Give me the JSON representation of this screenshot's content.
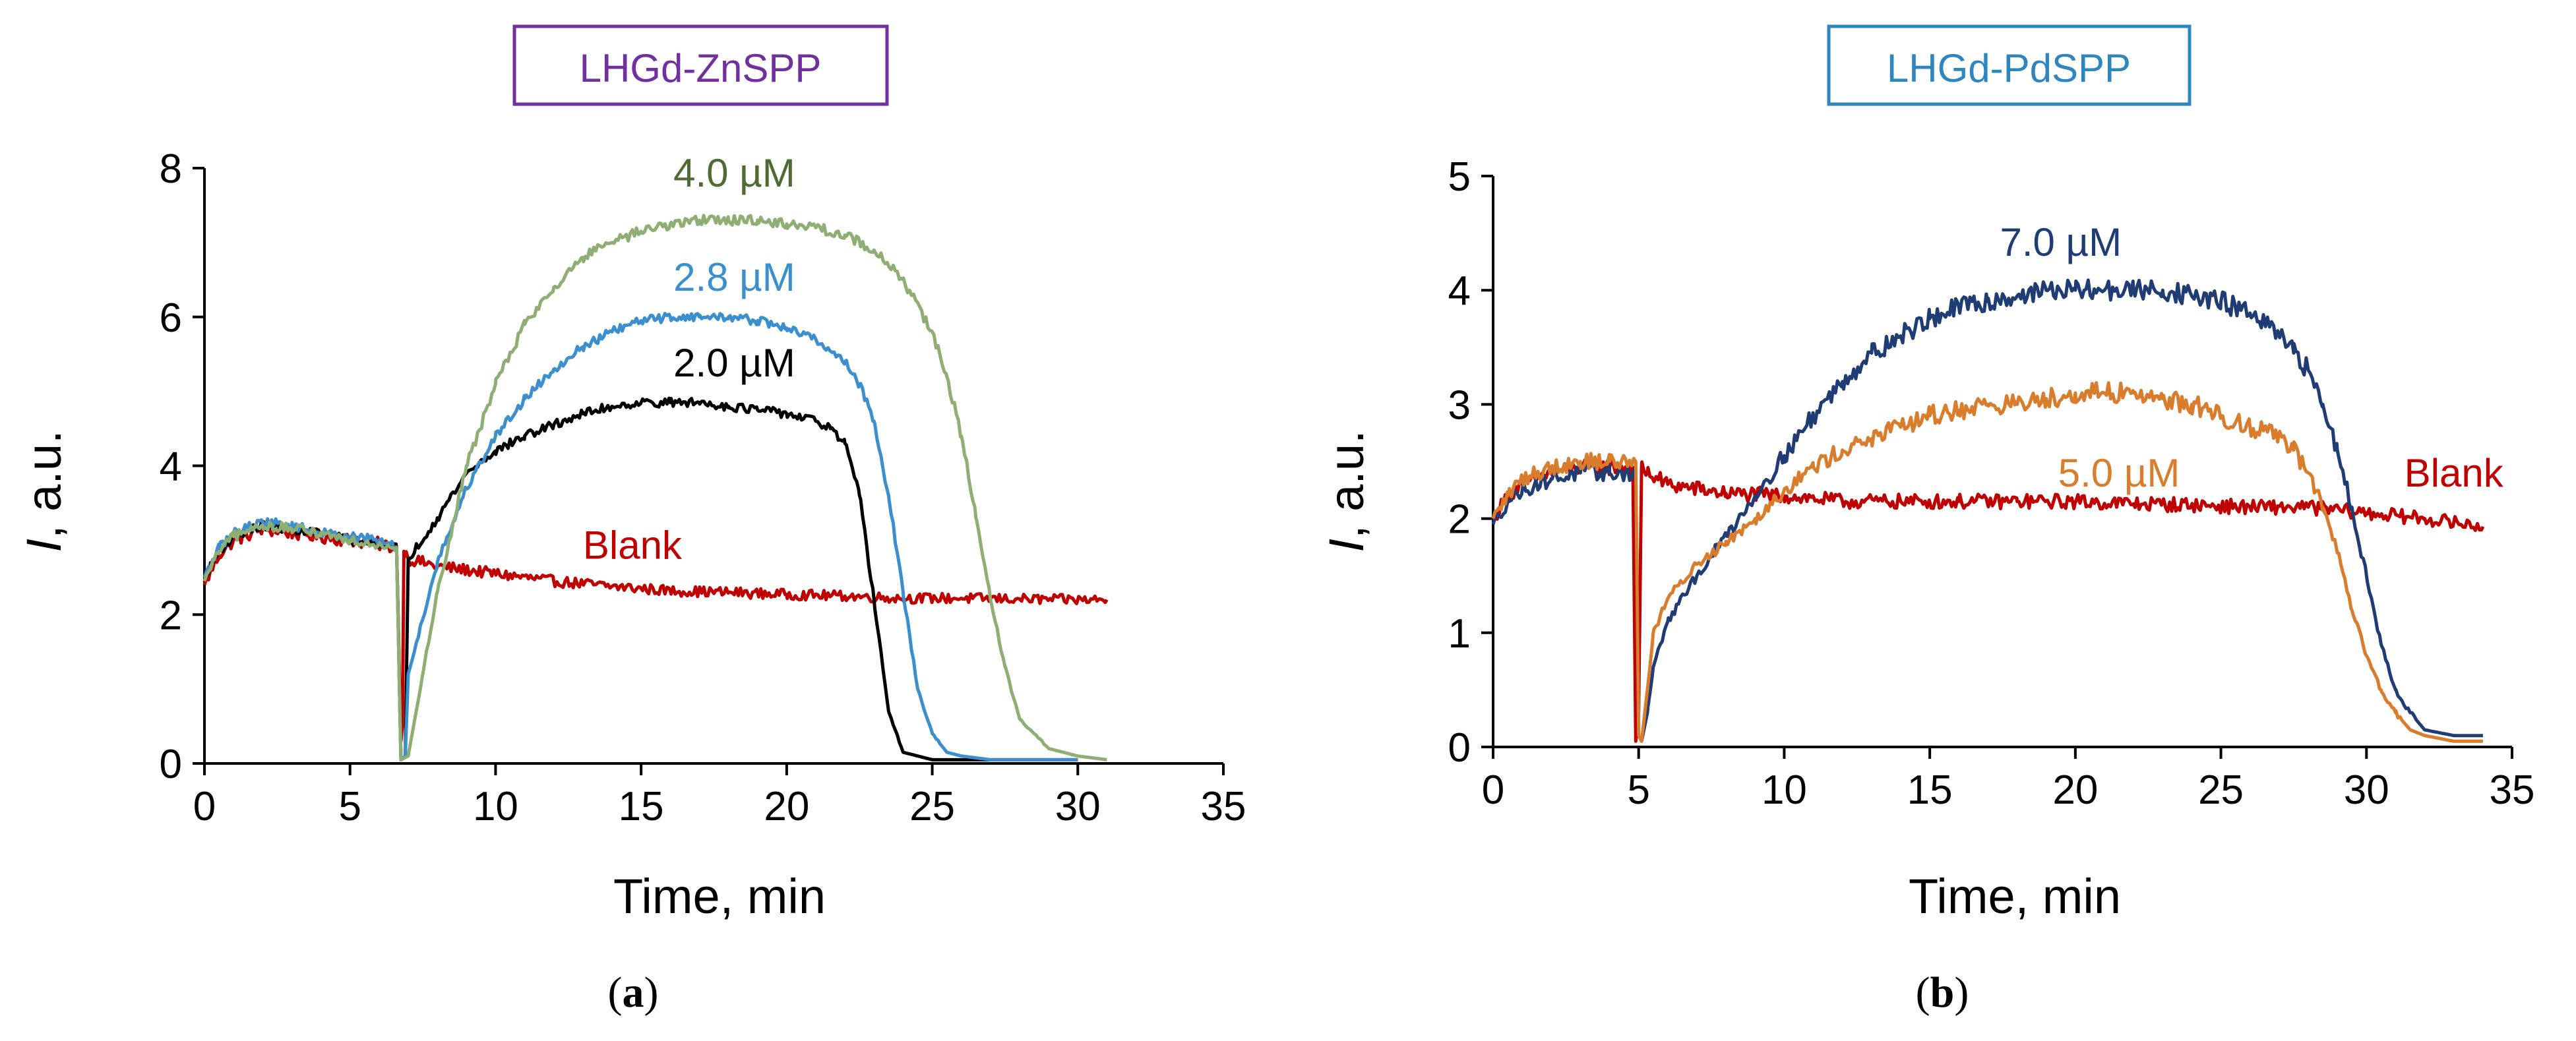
{
  "chart_data": [
    {
      "type": "line",
      "panel": "a",
      "panel_label_open": "(",
      "panel_label_letter": "a",
      "panel_label_close": ")",
      "title": "LHGd-ZnSPP",
      "title_color": "#7030a0",
      "xlabel": "Time, min",
      "ylabel_italic": "I",
      "ylabel_rest": ", a.u.",
      "xlim": [
        0,
        35
      ],
      "ylim": [
        0,
        8
      ],
      "xticks": [
        0,
        5,
        10,
        15,
        20,
        25,
        30,
        35
      ],
      "yticks": [
        0,
        2,
        4,
        6,
        8
      ],
      "series": [
        {
          "name": "Blank",
          "label": "Blank",
          "color": "#c00000",
          "noise": 0.09,
          "x": [
            0,
            0.5,
            1,
            2,
            3,
            4,
            5,
            6,
            6.6,
            6.75,
            6.8,
            6.85,
            7,
            8,
            10,
            12,
            14,
            16,
            18,
            20,
            22,
            24,
            26,
            28,
            30,
            31
          ],
          "y": [
            2.4,
            2.8,
            3.0,
            3.15,
            3.1,
            3.05,
            3.0,
            2.95,
            2.9,
            0.3,
            0.5,
            2.85,
            2.75,
            2.65,
            2.55,
            2.45,
            2.38,
            2.32,
            2.3,
            2.27,
            2.25,
            2.22,
            2.22,
            2.21,
            2.2,
            2.2
          ]
        },
        {
          "name": "2.0 µM",
          "label": "2.0 µM",
          "color": "#000000",
          "noise": 0.06,
          "x": [
            0,
            0.5,
            1,
            2,
            3,
            4,
            5,
            6,
            6.6,
            6.75,
            6.9,
            7,
            8,
            9,
            10,
            11,
            12,
            13,
            14,
            15,
            16,
            17,
            18,
            19,
            20,
            21,
            21.5,
            22,
            22.5,
            23,
            23.5,
            24,
            25,
            26,
            28,
            30
          ],
          "y": [
            2.5,
            2.85,
            3.05,
            3.2,
            3.15,
            3.1,
            3.0,
            2.95,
            2.9,
            0.05,
            0.1,
            2.75,
            3.3,
            3.9,
            4.2,
            4.4,
            4.55,
            4.7,
            4.8,
            4.85,
            4.85,
            4.85,
            4.8,
            4.75,
            4.7,
            4.6,
            4.5,
            4.3,
            3.6,
            2.2,
            0.7,
            0.15,
            0.05,
            0.05,
            0.05,
            0.05
          ]
        },
        {
          "name": "2.8 µM",
          "label": "2.8 µM",
          "color": "#3b8fcf",
          "noise": 0.06,
          "x": [
            0,
            0.5,
            1,
            2,
            3,
            4,
            5,
            6,
            6.6,
            6.75,
            6.9,
            7,
            8,
            9,
            10,
            11,
            12,
            13,
            14,
            15,
            16,
            17,
            18,
            19,
            20,
            21,
            22,
            22.5,
            23,
            23.5,
            24,
            24.5,
            25,
            25.5,
            26,
            27,
            28,
            30
          ],
          "y": [
            2.5,
            2.9,
            3.1,
            3.25,
            3.2,
            3.1,
            3.05,
            3.0,
            2.9,
            0.05,
            0.1,
            1.2,
            2.7,
            3.7,
            4.4,
            4.9,
            5.3,
            5.6,
            5.8,
            5.95,
            6.0,
            6.0,
            6.0,
            5.95,
            5.85,
            5.7,
            5.4,
            5.1,
            4.6,
            3.6,
            2.3,
            1.0,
            0.4,
            0.15,
            0.1,
            0.05,
            0.05,
            0.05
          ]
        },
        {
          "name": "4.0 µM",
          "label": "4.0 µM",
          "color": "#8fae74",
          "label_color": "#4d6b32",
          "noise": 0.07,
          "x": [
            0,
            0.5,
            1,
            2,
            3,
            4,
            5,
            6,
            6.6,
            6.75,
            7,
            7.5,
            8,
            9,
            10,
            11,
            12,
            13,
            14,
            15,
            16,
            17,
            18,
            19,
            20,
            21,
            22,
            23,
            24,
            25,
            25.5,
            26,
            26.5,
            27,
            27.5,
            28,
            29,
            30,
            31
          ],
          "y": [
            2.45,
            2.85,
            3.05,
            3.2,
            3.15,
            3.1,
            3.0,
            2.95,
            2.9,
            0.05,
            0.1,
            1.2,
            2.3,
            4.0,
            5.1,
            5.9,
            6.4,
            6.8,
            7.0,
            7.15,
            7.25,
            7.3,
            7.3,
            7.3,
            7.25,
            7.2,
            7.1,
            6.9,
            6.5,
            5.8,
            5.2,
            4.4,
            3.3,
            2.2,
            1.3,
            0.6,
            0.2,
            0.1,
            0.05
          ]
        }
      ],
      "annotations": [
        {
          "text": "4.0 µM",
          "x": 18.2,
          "y": 7.75,
          "color": "#4d6b32"
        },
        {
          "text": "2.8 µM",
          "x": 18.2,
          "y": 6.35,
          "color": "#3b8fcf"
        },
        {
          "text": "2.0 µM",
          "x": 18.2,
          "y": 5.2,
          "color": "#000000"
        },
        {
          "text": "Blank",
          "x": 14.7,
          "y": 2.75,
          "color": "#c00000"
        }
      ]
    },
    {
      "type": "line",
      "panel": "b",
      "panel_label_open": "(",
      "panel_label_letter": "b",
      "panel_label_close": ")",
      "title": "LHGd-PdSPP",
      "title_color": "#2e86c1",
      "xlabel": "Time, min",
      "ylabel_italic": "I",
      "ylabel_rest": ", a.u.",
      "xlim": [
        0,
        35
      ],
      "ylim": [
        0,
        5
      ],
      "xticks": [
        0,
        5,
        10,
        15,
        20,
        25,
        30,
        35
      ],
      "yticks": [
        0,
        1,
        2,
        3,
        4,
        5
      ],
      "series": [
        {
          "name": "Blank",
          "label": "Blank",
          "color": "#c00000",
          "noise": 0.09,
          "x": [
            0,
            0.5,
            1,
            2,
            3,
            4,
            4.8,
            4.9,
            5.0,
            5.1,
            5.3,
            6,
            8,
            10,
            12,
            14,
            16,
            18,
            20,
            22,
            24,
            26,
            28,
            30,
            32,
            34
          ],
          "y": [
            2.0,
            2.2,
            2.3,
            2.4,
            2.45,
            2.45,
            2.45,
            0.05,
            0.3,
            2.45,
            2.4,
            2.3,
            2.22,
            2.2,
            2.15,
            2.15,
            2.15,
            2.15,
            2.15,
            2.13,
            2.12,
            2.1,
            2.1,
            2.05,
            2.0,
            1.93
          ]
        },
        {
          "name": "7.0 µM",
          "label": "7.0 µM",
          "color": "#1f3c74",
          "noise": 0.09,
          "x": [
            0,
            0.5,
            1,
            2,
            3,
            4,
            4.9,
            5.0,
            5.1,
            5.3,
            5.5,
            6,
            7,
            8,
            9,
            10,
            11,
            12,
            13,
            14,
            15,
            16,
            17,
            18,
            19,
            20,
            21,
            22,
            23,
            24,
            25,
            26,
            27,
            27.5,
            28,
            28.5,
            29,
            29.5,
            30,
            30.5,
            31,
            31.5,
            32,
            33,
            34
          ],
          "y": [
            1.95,
            2.15,
            2.25,
            2.35,
            2.4,
            2.4,
            2.4,
            0.1,
            0.05,
            0.3,
            0.7,
            1.1,
            1.5,
            1.85,
            2.2,
            2.55,
            2.9,
            3.2,
            3.45,
            3.6,
            3.75,
            3.85,
            3.9,
            3.95,
            4.0,
            4.0,
            4.0,
            4.0,
            4.0,
            3.95,
            3.9,
            3.8,
            3.6,
            3.45,
            3.3,
            3.0,
            2.6,
            2.1,
            1.5,
            0.9,
            0.5,
            0.3,
            0.15,
            0.1,
            0.1
          ]
        },
        {
          "name": "5.0 µM",
          "label": "5.0 µM",
          "color": "#d97c2b",
          "label_color": "#d97c2b",
          "noise": 0.09,
          "x": [
            0,
            0.5,
            1,
            2,
            3,
            4,
            4.9,
            5.0,
            5.1,
            5.3,
            5.5,
            6,
            7,
            8,
            9,
            10,
            11,
            12,
            13,
            14,
            15,
            16,
            17,
            18,
            19,
            20,
            21,
            22,
            23,
            24,
            25,
            26,
            27,
            27.5,
            28,
            28.5,
            29,
            29.5,
            30,
            30.5,
            31,
            31.5,
            32,
            33,
            34
          ],
          "y": [
            2.0,
            2.2,
            2.35,
            2.45,
            2.5,
            2.5,
            2.5,
            0.1,
            0.05,
            0.5,
            1.0,
            1.3,
            1.6,
            1.8,
            2.0,
            2.25,
            2.45,
            2.6,
            2.7,
            2.8,
            2.9,
            2.95,
            3.0,
            3.0,
            3.05,
            3.1,
            3.1,
            3.1,
            3.05,
            3.0,
            2.9,
            2.8,
            2.75,
            2.6,
            2.4,
            2.1,
            1.7,
            1.2,
            0.8,
            0.5,
            0.3,
            0.15,
            0.1,
            0.05,
            0.05
          ]
        }
      ],
      "annotations": [
        {
          "text": "7.0 µM",
          "x": 19.5,
          "y": 4.3,
          "color": "#1f3c74"
        },
        {
          "text": "5.0 µM",
          "x": 21.5,
          "y": 2.28,
          "color": "#d97c2b"
        },
        {
          "text": "Blank",
          "x": 33.0,
          "y": 2.28,
          "color": "#c00000"
        }
      ]
    }
  ]
}
